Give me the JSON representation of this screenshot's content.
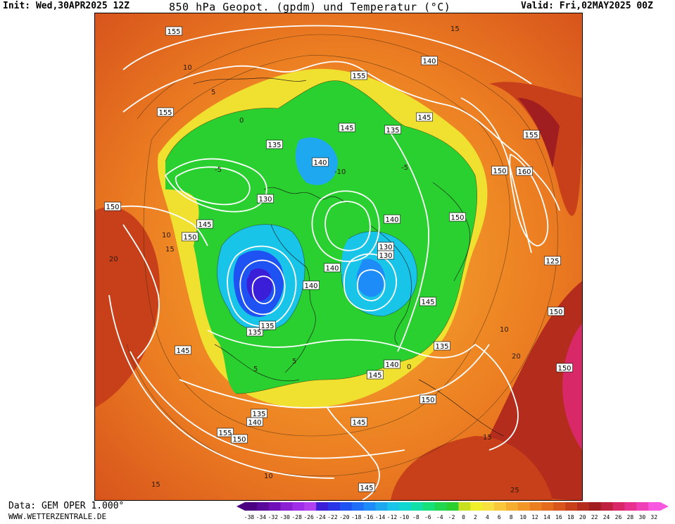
{
  "header": {
    "init": "Init: Wed,30APR2025 12Z",
    "title": "850 hPa Geopot. (gpdm) und Temperatur (°C)",
    "valid": "Valid: Fri,02MAY2025 00Z"
  },
  "footer": {
    "source": "Data: GEM OPER 1.000°",
    "site": "WWW.WETTERZENTRALE.DE"
  },
  "legend": {
    "values": [
      "-38",
      "-34",
      "-32",
      "-30",
      "-28",
      "-26",
      "-24",
      "-22",
      "-20",
      "-18",
      "-16",
      "-14",
      "-12",
      "-10",
      "-8",
      "-6",
      "-4",
      "-2",
      "0",
      "2",
      "4",
      "6",
      "8",
      "10",
      "12",
      "14",
      "16",
      "18",
      "20",
      "22",
      "24",
      "26",
      "28",
      "30",
      "32"
    ],
    "colors": [
      "#4b0082",
      "#5a0a9a",
      "#7010b8",
      "#8a1fd4",
      "#a02ee8",
      "#b040f0",
      "#3b1fd8",
      "#2b35e8",
      "#1f52f2",
      "#1e6ef8",
      "#1e8cf8",
      "#1ea8f0",
      "#18c4e8",
      "#10d8d0",
      "#12e0a8",
      "#16e07a",
      "#20d850",
      "#2ad030",
      "#c8e020",
      "#f0f02a",
      "#f8e040",
      "#f8c83a",
      "#f6ae30",
      "#f29628",
      "#ec7e22",
      "#e46a1e",
      "#d8551c",
      "#c8401a",
      "#b42c1c",
      "#a01e20",
      "#c02040",
      "#d82868",
      "#e83090",
      "#f040b8",
      "#f858e0"
    ]
  },
  "map": {
    "isohypse_labels": [
      "155",
      "155",
      "155",
      "150",
      "150",
      "150",
      "150",
      "150",
      "150",
      "150",
      "145",
      "145",
      "145",
      "145",
      "145",
      "145",
      "145",
      "140",
      "140",
      "140",
      "140",
      "140",
      "140",
      "135",
      "135",
      "135",
      "135",
      "135",
      "135",
      "130",
      "130",
      "130",
      "125",
      "160",
      "155",
      "140",
      "150",
      "155",
      "145"
    ],
    "temperature_labels": [
      "15",
      "10",
      "5",
      "0",
      "-5",
      "-10",
      "10",
      "15",
      "20",
      "15",
      "10",
      "5",
      "0",
      "-5",
      "25",
      "20",
      "15",
      "10",
      "5"
    ]
  }
}
